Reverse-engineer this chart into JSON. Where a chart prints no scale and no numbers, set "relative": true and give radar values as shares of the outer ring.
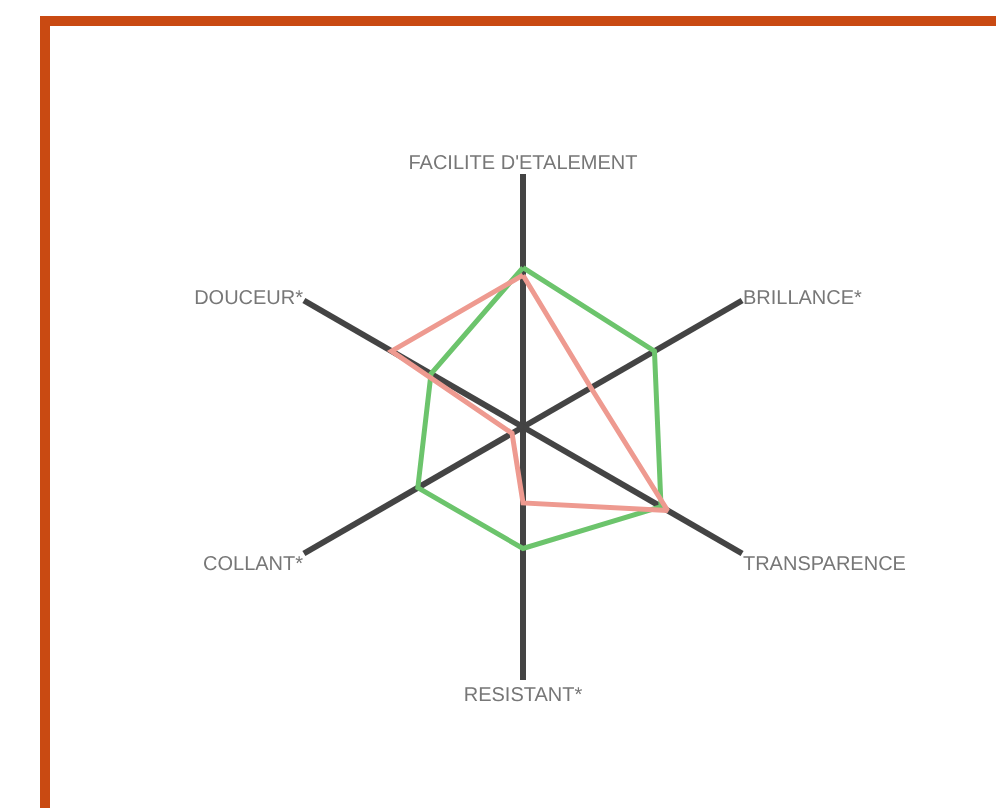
{
  "chart_data": {
    "type": "radar",
    "relative": true,
    "categories": [
      "FACILITE D'ETALEMENT",
      "BRILLANCE*",
      "TRANSPARENCE",
      "RESISTANT*",
      "COLLANT*",
      "DOUCEUR*"
    ],
    "series": [
      {
        "color": "#6cc46c",
        "values": [
          0.63,
          0.6,
          0.63,
          0.48,
          0.48,
          0.42
        ]
      },
      {
        "color": "#ee9a90",
        "values": [
          0.6,
          0.31,
          0.66,
          0.3,
          0.05,
          0.6
        ]
      }
    ],
    "grid": true
  }
}
